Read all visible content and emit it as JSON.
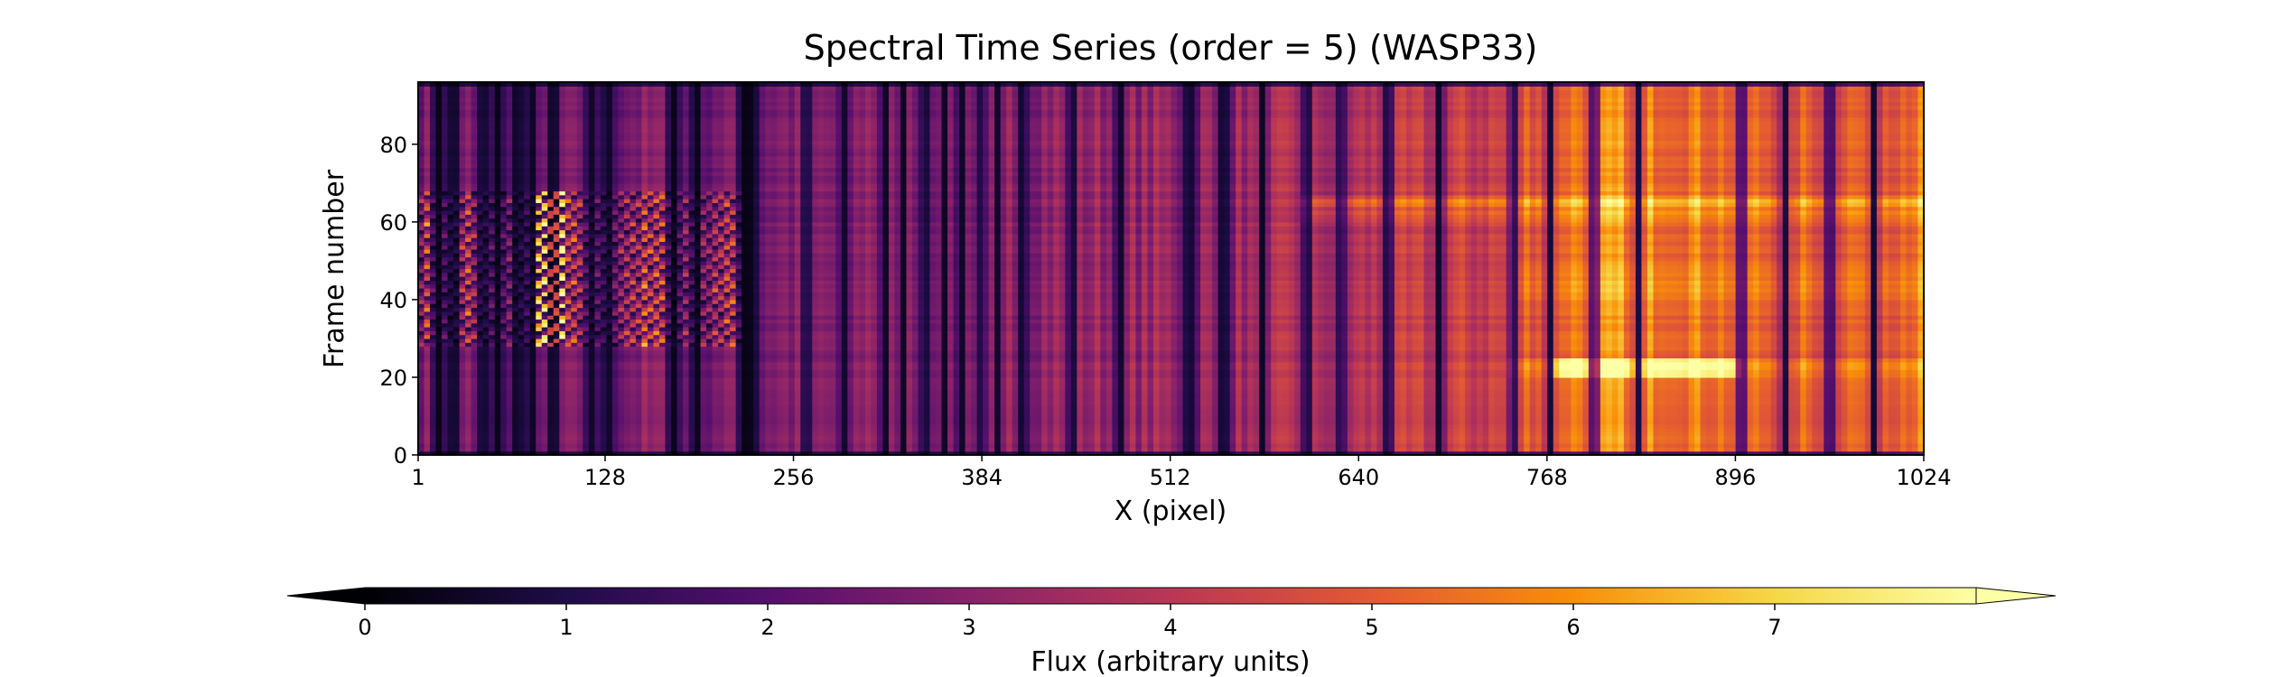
{
  "chart_data": {
    "type": "heatmap",
    "title": "Spectral Time Series (order = 5) (WASP33)",
    "xlabel": "X (pixel)",
    "ylabel": "Frame number",
    "xlim": [
      1,
      1024
    ],
    "ylim": [
      0,
      96
    ],
    "x_ticks": [
      1,
      128,
      256,
      384,
      512,
      640,
      768,
      896,
      1024
    ],
    "y_ticks": [
      0,
      20,
      40,
      60,
      80
    ],
    "grid": false,
    "colormap": "inferno",
    "colorbar": {
      "label": "Flux (arbitrary units)",
      "orientation": "horizontal",
      "placement": "bottom",
      "range": [
        0,
        8
      ],
      "extend": "both",
      "ticks": [
        0,
        1,
        2,
        3,
        4,
        5,
        6,
        7
      ]
    },
    "absorption_lines_x": [
      15,
      25,
      45,
      55,
      68,
      78,
      93,
      118,
      130,
      175,
      190,
      222,
      228,
      265,
      290,
      318,
      330,
      345,
      358,
      370,
      384,
      395,
      412,
      445,
      478,
      525,
      548,
      575,
      605,
      628,
      660,
      695,
      745,
      770,
      800,
      830,
      900,
      930,
      960,
      990
    ],
    "bright_region": {
      "x": [
        740,
        1024
      ],
      "frames": [
        0,
        70
      ]
    },
    "noisy_block": {
      "x": [
        1,
        220
      ],
      "frames": [
        28,
        68
      ]
    },
    "peak_feature": {
      "x": [
        770,
        900
      ],
      "frames": [
        20,
        25
      ]
    }
  }
}
